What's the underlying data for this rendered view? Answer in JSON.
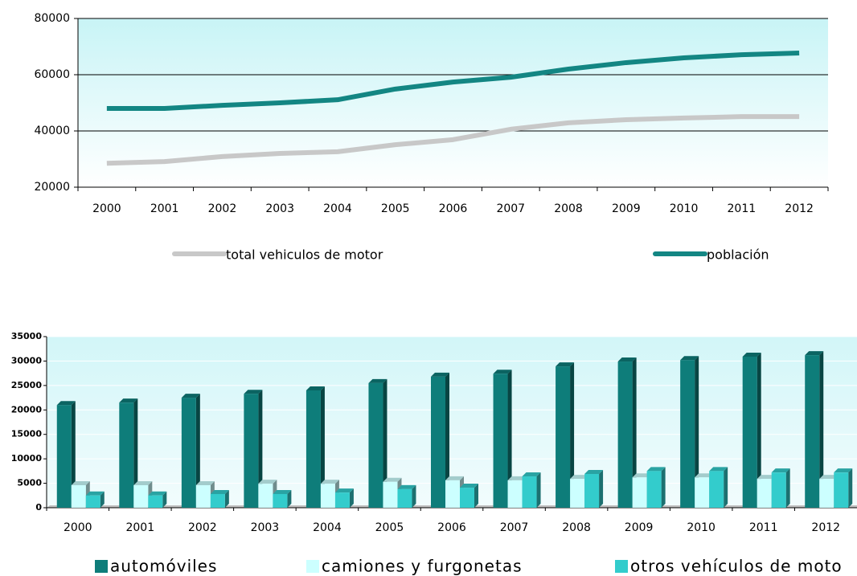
{
  "chart_data": [
    {
      "type": "line",
      "categories": [
        "2000",
        "2001",
        "2002",
        "2003",
        "2004",
        "2005",
        "2006",
        "2007",
        "2008",
        "2009",
        "2010",
        "2011",
        "2012"
      ],
      "series": [
        {
          "name": "total vehiculos de motor",
          "color": "#c8c8c8",
          "values": [
            28500,
            29100,
            30900,
            32000,
            32600,
            35100,
            36900,
            40600,
            42900,
            44000,
            44600,
            45100,
            45100
          ]
        },
        {
          "name": "población",
          "color": "#138683",
          "values": [
            48000,
            48000,
            49100,
            50000,
            51100,
            54900,
            57400,
            59100,
            62000,
            64300,
            66000,
            67100,
            67700
          ]
        }
      ],
      "ylim": [
        20000,
        80000
      ],
      "yticks": [
        20000,
        40000,
        60000,
        80000
      ],
      "grid": true
    },
    {
      "type": "bar3d",
      "categories": [
        "2000",
        "2001",
        "2002",
        "2003",
        "2004",
        "2005",
        "2006",
        "2007",
        "2008",
        "2009",
        "2010",
        "2011",
        "2012"
      ],
      "series": [
        {
          "name": "automóviles",
          "color": "#0e7d7a",
          "values": [
            21000,
            21500,
            22500,
            23300,
            24000,
            25500,
            26800,
            27400,
            28900,
            29900,
            30200,
            30900,
            31200
          ]
        },
        {
          "name": "camiones y furgonetas",
          "color": "#ccffff",
          "values": [
            4600,
            4600,
            4600,
            4900,
            4900,
            5300,
            5600,
            5600,
            5900,
            6200,
            6200,
            5900,
            5900
          ]
        },
        {
          "name": "otros vehículos de moto",
          "color": "#33cccc",
          "values": [
            2500,
            2500,
            2800,
            2800,
            3100,
            3800,
            4100,
            6400,
            6900,
            7500,
            7500,
            7200,
            7200
          ]
        }
      ],
      "ylim": [
        0,
        35000
      ],
      "yticks": [
        0,
        5000,
        10000,
        15000,
        20000,
        25000,
        30000,
        35000
      ],
      "grid": true
    }
  ]
}
